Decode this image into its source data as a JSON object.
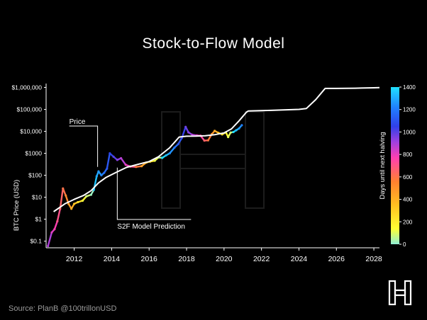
{
  "title": "Stock-to-Flow Model",
  "source": "Source: PlanB @100trillonUSD",
  "chart_data": {
    "type": "scatter",
    "title": "Stock-to-Flow Model",
    "ylabel": "BTC Price (USD)",
    "yscale": "log",
    "ylim": [
      0.05,
      1500000
    ],
    "xlim": [
      2010.5,
      2028.3
    ],
    "y_ticks": [
      {
        "v": 0.1,
        "label": "$0.1"
      },
      {
        "v": 1,
        "label": "$1"
      },
      {
        "v": 10,
        "label": "$10"
      },
      {
        "v": 100,
        "label": "$100"
      },
      {
        "v": 1000,
        "label": "$1000"
      },
      {
        "v": 10000,
        "label": "$10,000"
      },
      {
        "v": 100000,
        "label": "$100,000"
      },
      {
        "v": 1000000,
        "label": "$1,000,000"
      }
    ],
    "x_ticks": [
      {
        "v": 2012,
        "label": "2012"
      },
      {
        "v": 2014,
        "label": "2014"
      },
      {
        "v": 2016,
        "label": "2016"
      },
      {
        "v": 2018,
        "label": "2018"
      },
      {
        "v": 2020,
        "label": "2020"
      },
      {
        "v": 2022,
        "label": "2022"
      },
      {
        "v": 2024,
        "label": "2024"
      },
      {
        "v": 2026,
        "label": "2026"
      },
      {
        "v": 2028,
        "label": "2028"
      }
    ],
    "colorbar": {
      "label": "Days until next halving",
      "range": [
        0,
        1400
      ],
      "ticks": [
        0,
        200,
        400,
        600,
        800,
        1000,
        1200,
        1400
      ],
      "colors": [
        "#8ff0d6",
        "#ffff33",
        "#ffc020",
        "#ff8030",
        "#ff3fb0",
        "#a040e0",
        "#3040e8",
        "#2080ff",
        "#20e0ff"
      ]
    },
    "annotations": [
      {
        "text": "Price",
        "x": 2013.25,
        "y": 240
      },
      {
        "text": "S2F Model Prediction",
        "x": 2014.3,
        "y": 300
      }
    ],
    "series": [
      {
        "key": "s2f",
        "color": "#ffffff",
        "points": [
          [
            2010.9,
            2.2
          ],
          [
            2011.5,
            5
          ],
          [
            2012.0,
            8
          ],
          [
            2012.5,
            12
          ],
          [
            2012.9,
            20
          ],
          [
            2013.3,
            45
          ],
          [
            2013.7,
            80
          ],
          [
            2014.2,
            130
          ],
          [
            2014.8,
            230
          ],
          [
            2015.5,
            330
          ],
          [
            2016.0,
            420
          ],
          [
            2016.5,
            700
          ],
          [
            2017.1,
            1800
          ],
          [
            2017.4,
            3500
          ],
          [
            2017.6,
            5500
          ],
          [
            2018.0,
            6000
          ],
          [
            2018.5,
            6100
          ],
          [
            2019.0,
            6300
          ],
          [
            2019.5,
            7000
          ],
          [
            2020.0,
            8500
          ],
          [
            2020.4,
            13000
          ],
          [
            2020.8,
            30000
          ],
          [
            2021.2,
            75000
          ],
          [
            2021.3,
            85000
          ],
          [
            2022.5,
            90000
          ],
          [
            2024.0,
            100000
          ],
          [
            2024.4,
            110000
          ],
          [
            2024.9,
            280000
          ],
          [
            2025.4,
            900000
          ],
          [
            2026.0,
            900000
          ],
          [
            2027.0,
            920000
          ],
          [
            2028.0,
            960000
          ],
          [
            2028.3,
            980000
          ]
        ]
      },
      {
        "key": "price",
        "color_by": "days_until_next_halving",
        "points": [
          [
            2010.6,
            0.06,
            850
          ],
          [
            2010.8,
            0.25,
            760
          ],
          [
            2010.95,
            0.35,
            700
          ],
          [
            2011.1,
            0.8,
            650
          ],
          [
            2011.25,
            3,
            600
          ],
          [
            2011.4,
            25,
            560
          ],
          [
            2011.55,
            12,
            500
          ],
          [
            2011.7,
            5,
            440
          ],
          [
            2011.85,
            3,
            400
          ],
          [
            2012.0,
            5,
            330
          ],
          [
            2012.2,
            6,
            260
          ],
          [
            2012.45,
            7,
            170
          ],
          [
            2012.65,
            11,
            100
          ],
          [
            2012.9,
            13,
            20
          ],
          [
            2013.05,
            22,
            1350
          ],
          [
            2013.2,
            90,
            1300
          ],
          [
            2013.3,
            150,
            1270
          ],
          [
            2013.45,
            100,
            1230
          ],
          [
            2013.6,
            130,
            1170
          ],
          [
            2013.75,
            200,
            1110
          ],
          [
            2013.9,
            1000,
            1060
          ],
          [
            2014.1,
            700,
            990
          ],
          [
            2014.3,
            500,
            910
          ],
          [
            2014.5,
            600,
            830
          ],
          [
            2014.75,
            300,
            740
          ],
          [
            2015.0,
            250,
            650
          ],
          [
            2015.3,
            240,
            540
          ],
          [
            2015.6,
            260,
            430
          ],
          [
            2015.85,
            380,
            330
          ],
          [
            2016.05,
            420,
            250
          ],
          [
            2016.3,
            460,
            150
          ],
          [
            2016.5,
            650,
            70
          ],
          [
            2016.7,
            620,
            1400
          ],
          [
            2016.9,
            800,
            1330
          ],
          [
            2017.1,
            1000,
            1260
          ],
          [
            2017.35,
            1800,
            1180
          ],
          [
            2017.55,
            2600,
            1110
          ],
          [
            2017.75,
            5000,
            1040
          ],
          [
            2017.95,
            16000,
            960
          ],
          [
            2018.1,
            9000,
            910
          ],
          [
            2018.3,
            7000,
            840
          ],
          [
            2018.55,
            6500,
            750
          ],
          [
            2018.75,
            6300,
            680
          ],
          [
            2018.95,
            3800,
            600
          ],
          [
            2019.15,
            3900,
            540
          ],
          [
            2019.35,
            7500,
            470
          ],
          [
            2019.5,
            10500,
            400
          ],
          [
            2019.7,
            8500,
            340
          ],
          [
            2019.9,
            7300,
            260
          ],
          [
            2020.1,
            9000,
            190
          ],
          [
            2020.22,
            5500,
            140
          ],
          [
            2020.35,
            8800,
            90
          ],
          [
            2020.5,
            9300,
            1390
          ],
          [
            2020.65,
            11200,
            1330
          ],
          [
            2020.8,
            13500,
            1270
          ],
          [
            2020.95,
            19000,
            1220
          ]
        ]
      }
    ]
  }
}
